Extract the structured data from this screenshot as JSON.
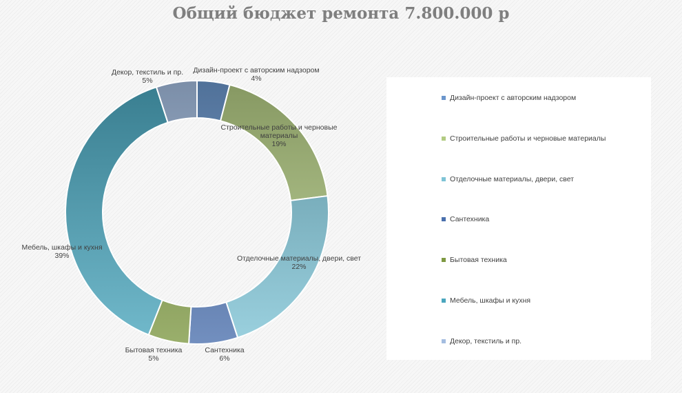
{
  "chart_data": {
    "type": "pie",
    "title": "Общий бюджет ремонта 7.800.000 р",
    "categories": [
      "Дизайн-проект с авторским надзором",
      "Строительные работы и черновые материалы",
      "Отделочные материалы, двери, свет",
      "Сантехника",
      "Бытовая техника",
      "Мебель, шкафы и кухня",
      "Декор, текстиль и пр."
    ],
    "data_labels": [
      "Дизайн-проект с авторским надзором",
      "Строительные работы и черновые материалы",
      "Отделочные материалы, двери, свет",
      "Сантехника",
      "Бытовая техника",
      "Мебель, шкафы и кухня",
      "Декор, текстиль и пр."
    ],
    "values": [
      4,
      19,
      22,
      6,
      5,
      39,
      5
    ],
    "value_labels": [
      "4%",
      "19%",
      "22%",
      "6%",
      "5%",
      "39%",
      "5%"
    ],
    "colors": [
      "#6b96cc",
      "#b2cb82",
      "#7fc4d6",
      "#4a70ad",
      "#7e9942",
      "#4aa6be",
      "#a4bde0"
    ],
    "donut": true,
    "legend_position": "right"
  }
}
